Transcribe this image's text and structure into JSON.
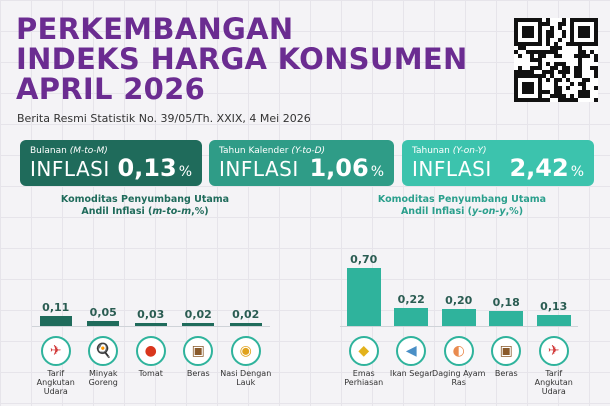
{
  "title_lines": [
    "PERKEMBANGAN",
    "INDEKS HARGA KONSUMEN",
    "APRIL 2026"
  ],
  "subtitle": "Berita Resmi Statistik No. 39/05/Th. XXIX, 4 Mei 2026",
  "cards": [
    {
      "label_pre": "Bulanan ",
      "label_em": "(M-to-M)",
      "word": "INFLASI",
      "value": "0,13",
      "unit": "%",
      "color": "#1f6b5b"
    },
    {
      "label_pre": "Tahun Kalender ",
      "label_em": "(Y-to-D)",
      "word": "INFLASI",
      "value": "1,06",
      "unit": "%",
      "color": "#2f9c87"
    },
    {
      "label_pre": "Tahunan ",
      "label_em": "(Y-on-Y)",
      "word": "INFLASI",
      "value": "2,42",
      "unit": "%",
      "color": "#3cc3ad"
    }
  ],
  "left_heading": {
    "line1": "Komoditas Penyumbang Utama",
    "line2_pre": "Andil Inflasi (",
    "line2_em": "m-to-m",
    "line2_post": ",%)"
  },
  "right_heading": {
    "line1": "Komoditas Penyumbang Utama",
    "line2_pre": "Andil Inflasi (",
    "line2_em": "y-on-y",
    "line2_post": ",%)"
  },
  "chart_data": [
    {
      "type": "bar",
      "categories": [
        "Tarif Angkutan Udara",
        "Minyak Goreng",
        "Tomat",
        "Beras",
        "Nasi Dengan Lauk"
      ],
      "values": [
        0.11,
        0.05,
        0.03,
        0.02,
        0.02
      ],
      "value_labels": [
        "0,11",
        "0,05",
        "0,03",
        "0,02",
        "0,02"
      ],
      "color": "#1f6b5b",
      "icons": [
        "airplane-icon",
        "cooking-oil-icon",
        "tomato-icon",
        "rice-sack-icon",
        "rice-dish-icon"
      ]
    },
    {
      "type": "bar",
      "categories": [
        "Emas Perhiasan",
        "Ikan Segar",
        "Daging Ayam Ras",
        "Beras",
        "Tarif Angkutan Udara"
      ],
      "values": [
        0.7,
        0.22,
        0.2,
        0.18,
        0.13
      ],
      "value_labels": [
        "0,70",
        "0,22",
        "0,20",
        "0,18",
        "0,13"
      ],
      "color": "#2fb39c",
      "icons": [
        "gold-jewelry-icon",
        "fish-icon",
        "chicken-meat-icon",
        "rice-sack-icon",
        "airplane-icon"
      ]
    }
  ]
}
